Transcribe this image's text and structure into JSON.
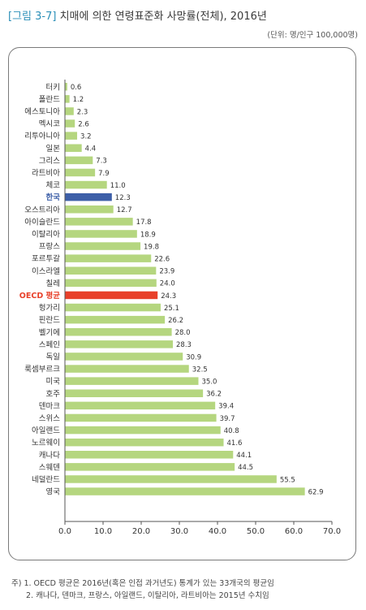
{
  "figure": {
    "number": "[그림 3-7]",
    "title": "치매에 의한 연령표준화 사망률(전체), 2016년",
    "unit": "(단위: 명/인구 100,000명)"
  },
  "chart_data": {
    "type": "bar",
    "orientation": "horizontal",
    "categories": [
      "터키",
      "폴란드",
      "에스토니아",
      "멕시코",
      "리투아니아",
      "일본",
      "그리스",
      "라트비아",
      "체코",
      "한국",
      "오스트리아",
      "아이슬란드",
      "이탈리아",
      "프랑스",
      "포르투갈",
      "이스라엘",
      "칠레",
      "OECD 평균",
      "헝가리",
      "핀란드",
      "벨기에",
      "스페인",
      "독일",
      "룩셈부르크",
      "미국",
      "호주",
      "덴마크",
      "스위스",
      "아일랜드",
      "노르웨이",
      "캐나다",
      "스웨덴",
      "네덜란드",
      "영국"
    ],
    "values": [
      0.6,
      1.2,
      2.3,
      2.6,
      3.2,
      4.4,
      7.3,
      7.9,
      11.0,
      12.3,
      12.7,
      17.8,
      18.9,
      19.8,
      22.6,
      23.9,
      24.0,
      24.3,
      25.1,
      26.2,
      28.0,
      28.3,
      30.9,
      32.5,
      35.0,
      36.2,
      39.4,
      39.7,
      40.8,
      41.6,
      44.1,
      44.5,
      55.5,
      62.9
    ],
    "value_labels": [
      "0.6",
      "1.2",
      "2.3",
      "2.6",
      "3.2",
      "4.4",
      "7.3",
      "7.9",
      "11.0",
      "12.3",
      "12.7",
      "17.8",
      "18.9",
      "19.8",
      "22.6",
      "23.9",
      "24.0",
      "24.3",
      "25.1",
      "26.2",
      "28.0",
      "28.3",
      "30.9",
      "32.5",
      "35.0",
      "36.2",
      "39.4",
      "39.7",
      "40.8",
      "41.6",
      "44.1",
      "44.5",
      "55.5",
      "62.9"
    ],
    "highlight": {
      "한국": "korea",
      "OECD 평균": "oecd"
    },
    "xlim": [
      0,
      70
    ],
    "xticks": [
      "0.0",
      "10.0",
      "20.0",
      "30.0",
      "40.0",
      "50.0",
      "60.0",
      "70.0"
    ],
    "grid": false,
    "colors": {
      "default": "#b5d67f",
      "korea": "#3d5fa8",
      "oecd": "#e8402a",
      "oecd_label": "#e8402a",
      "korea_label": "#3d5fa8"
    }
  },
  "notes": [
    "주) 1. OECD 평균은 2016년(혹은 인접 과거년도) 통계가 있는 33개국의 평균임",
    "2. 캐나다, 덴마크, 프랑스, 아일랜드, 이탈리아, 라트비아는 2015년 수치임"
  ]
}
